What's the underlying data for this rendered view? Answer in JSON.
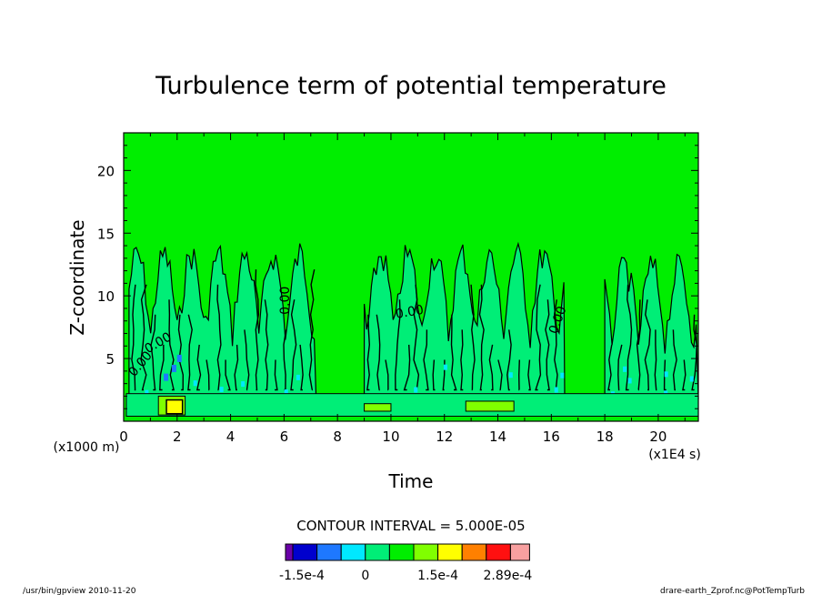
{
  "chart_data": {
    "type": "contour",
    "title": "Turbulence term of potential temperature",
    "xlabel": "Time",
    "ylabel": "Z-coordinate",
    "x_unit": "(x1E4 s)",
    "y_unit": "(x1000 m)",
    "xlim": [
      0,
      21.5
    ],
    "ylim": [
      0,
      23
    ],
    "xticks": [
      "0",
      "2",
      "4",
      "6",
      "8",
      "10",
      "12",
      "14",
      "16",
      "18",
      "20"
    ],
    "yticks": [
      "5",
      "10",
      "15",
      "20"
    ],
    "contour_interval_label": "CONTOUR INTERVAL = 5.000E-05",
    "contour_label": "0.00",
    "colorbar": {
      "colors": [
        "#6a00a8",
        "#0000cd",
        "#1e78ff",
        "#00e8ff",
        "#00ee77",
        "#00ee00",
        "#80ff00",
        "#ffff00",
        "#ff8000",
        "#ff1010",
        "#f8a0a0"
      ],
      "tick_labels": [
        "-1.5e-4",
        "0",
        "1.5e-4",
        "2.89e-4"
      ]
    },
    "background_value_color": "#00ee00",
    "turbulent_regions": [
      {
        "t_start": 0.2,
        "t_end": 7.2,
        "z_top": 14.5
      },
      {
        "t_start": 9.0,
        "t_end": 16.5,
        "z_top": 14.5
      },
      {
        "t_start": 18.0,
        "t_end": 21.5,
        "z_top": 13.5
      }
    ]
  },
  "footer": {
    "left": "/usr/bin/gpview  2010-11-20",
    "right": "drare-earth_Zprof.nc@PotTempTurb"
  }
}
